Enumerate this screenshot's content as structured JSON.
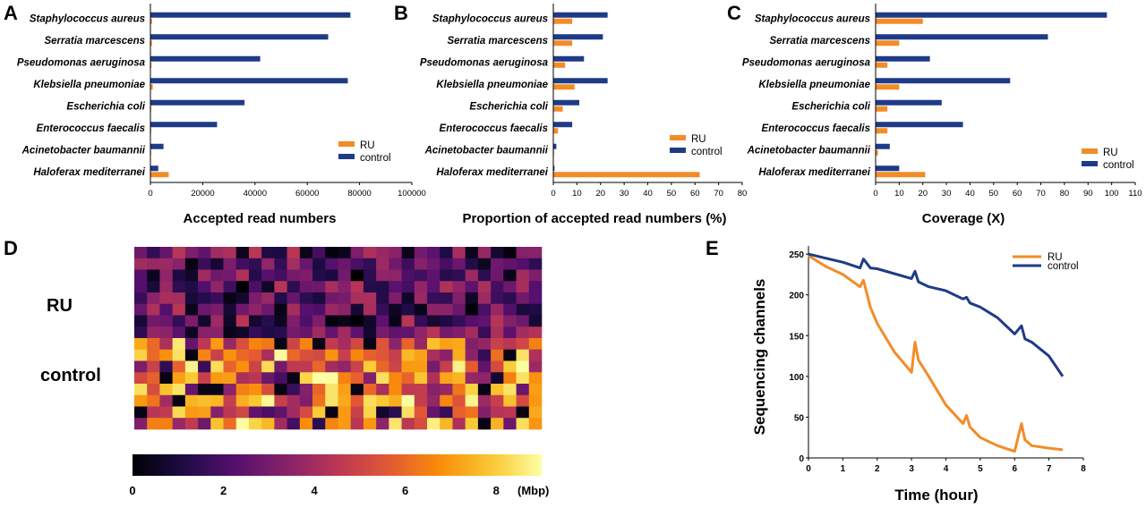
{
  "colors": {
    "ru": "#F28C28",
    "control": "#1F3B87"
  },
  "panels": {
    "a": "A",
    "b": "B",
    "c": "C",
    "d": "D",
    "e": "E"
  },
  "chart_data": [
    {
      "id": "A",
      "type": "bar",
      "orientation": "horizontal",
      "categories": [
        "Staphylococcus aureus",
        "Serratia marcescens",
        "Pseudomonas aeruginosa",
        "Klebsiella pneumoniae",
        "Escherichia coli",
        "Enterococcus faecalis",
        "Acinetobacter baumannii",
        "Haloferax mediterranei"
      ],
      "series": [
        {
          "name": "RU",
          "values": [
            600,
            600,
            400,
            900,
            300,
            300,
            200,
            7000
          ]
        },
        {
          "name": "control",
          "values": [
            76500,
            68000,
            42000,
            75500,
            36000,
            25500,
            5000,
            3000
          ]
        }
      ],
      "xlabel": "Accepted read numbers",
      "xlim": [
        0,
        100000
      ],
      "xticks": [
        0,
        20000,
        40000,
        60000,
        80000,
        100000
      ],
      "xtick_labels": [
        "0",
        "20000",
        "40000",
        "60000",
        "80000",
        "100000"
      ],
      "legend_position": "right"
    },
    {
      "id": "B",
      "type": "bar",
      "orientation": "horizontal",
      "categories": [
        "Staphylococcus aureus",
        "Serratia marcescens",
        "Pseudomonas aeruginosa",
        "Klebsiella pneumoniae",
        "Escherichia coli",
        "Enterococcus faecalis",
        "Acinetobacter baumannii",
        "Haloferax mediterranei"
      ],
      "series": [
        {
          "name": "RU",
          "values": [
            8,
            8,
            5,
            9,
            4,
            2,
            0.3,
            62
          ]
        },
        {
          "name": "control",
          "values": [
            23,
            21,
            13,
            23,
            11,
            8,
            1.3,
            0.5
          ]
        }
      ],
      "xlabel": "Proportion of accepted read numbers",
      "xlabel_unit": "(%)",
      "xlim": [
        0,
        80
      ],
      "xticks": [
        0,
        10,
        20,
        30,
        40,
        50,
        60,
        70,
        80
      ],
      "xtick_labels": [
        "0",
        "10",
        "20",
        "30",
        "40",
        "50",
        "60",
        "70",
        "80"
      ],
      "legend_position": "right"
    },
    {
      "id": "C",
      "type": "bar",
      "orientation": "horizontal",
      "categories": [
        "Staphylococcus aureus",
        "Serratia marcescens",
        "Pseudomonas aeruginosa",
        "Klebsiella pneumoniae",
        "Escherichia coli",
        "Enterococcus faecalis",
        "Acinetobacter baumannii",
        "Haloferax mediterranei"
      ],
      "series": [
        {
          "name": "RU",
          "values": [
            20,
            10,
            5,
            10,
            5,
            5,
            1,
            21
          ]
        },
        {
          "name": "control",
          "values": [
            98,
            73,
            23,
            57,
            28,
            37,
            6,
            10
          ]
        }
      ],
      "xlabel": "Coverage (X)",
      "xlim": [
        0,
        110
      ],
      "xticks": [
        0,
        10,
        20,
        30,
        40,
        50,
        60,
        70,
        80,
        90,
        100,
        110
      ],
      "xtick_labels": [
        "0",
        "10",
        "20",
        "30",
        "40",
        "50",
        "60",
        "70",
        "80",
        "90",
        "100",
        "110"
      ],
      "legend_position": "bottom-right"
    },
    {
      "id": "D",
      "type": "heatmap",
      "row_groups": [
        "RU",
        "control"
      ],
      "rows_per_group": 8,
      "columns": 32,
      "ru_seed": 7,
      "control_seed": 13,
      "ru_value_range": [
        0,
        4.5
      ],
      "control_value_range": [
        0,
        9
      ],
      "colorbar_range": [
        0,
        9
      ],
      "colorbar_ticks": [
        "0",
        "2",
        "4",
        "6",
        "8"
      ],
      "colorbar_unit": "(Mbp)"
    },
    {
      "id": "E",
      "type": "line",
      "x": [
        0,
        0.5,
        1,
        1.5,
        1.6,
        1.8,
        2,
        2.5,
        3,
        3.1,
        3.2,
        3.5,
        4,
        4.5,
        4.6,
        4.7,
        5,
        5.5,
        6,
        6.2,
        6.3,
        6.5,
        7,
        7.4
      ],
      "series": [
        {
          "name": "RU",
          "values": [
            248,
            235,
            225,
            210,
            218,
            185,
            165,
            130,
            105,
            142,
            120,
            100,
            65,
            42,
            52,
            38,
            25,
            15,
            8,
            42,
            22,
            15,
            12,
            10
          ]
        },
        {
          "name": "control",
          "values": [
            250,
            245,
            240,
            233,
            244,
            233,
            232,
            226,
            220,
            229,
            216,
            210,
            205,
            195,
            197,
            190,
            185,
            172,
            152,
            162,
            146,
            142,
            125,
            100
          ]
        }
      ],
      "xlabel": "Time (hour)",
      "ylabel": "Sequencing channels",
      "xlim": [
        0,
        8
      ],
      "ylim": [
        0,
        260
      ],
      "xticks": [
        "0",
        "1",
        "2",
        "3",
        "4",
        "5",
        "6",
        "7",
        "8"
      ],
      "yticks": [
        "0",
        "50",
        "100",
        "150",
        "200",
        "250"
      ],
      "legend_position": "top-right"
    }
  ]
}
